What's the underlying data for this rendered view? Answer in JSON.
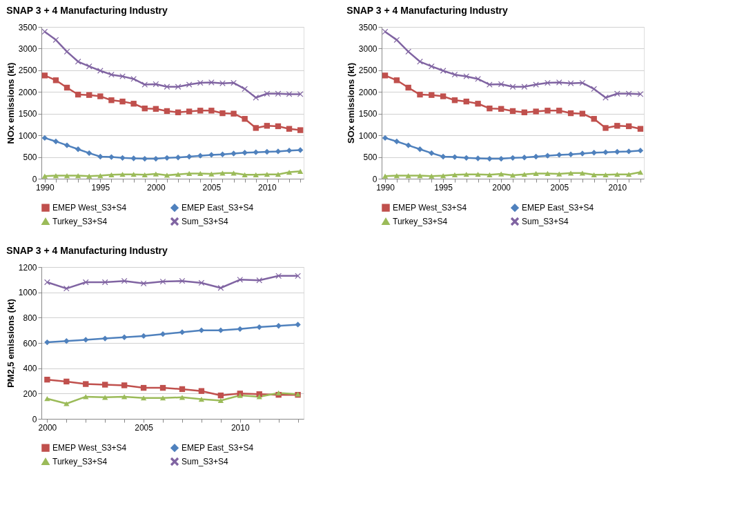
{
  "chart_data": [
    {
      "type": "line",
      "title": "SNAP 3 + 4 Manufacturing Industry",
      "ylabel": "NOx  emissions (kt)",
      "categories": [
        "1990",
        null,
        null,
        null,
        null,
        "1995",
        null,
        null,
        null,
        null,
        "2000",
        null,
        null,
        null,
        null,
        "2005",
        null,
        null,
        null,
        null,
        "2010",
        null,
        null,
        null
      ],
      "series": [
        {
          "name": "EMEP West_S3+S4",
          "color": "#c0504d",
          "marker": "square",
          "values": [
            2380,
            2270,
            2100,
            1940,
            1930,
            1900,
            1810,
            1780,
            1730,
            1620,
            1610,
            1560,
            1530,
            1550,
            1570,
            1570,
            1510,
            1500,
            1380,
            1170,
            1220,
            1210,
            1150,
            1120
          ]
        },
        {
          "name": "EMEP East_S3+S4",
          "color": "#4f81bd",
          "marker": "diamond",
          "values": [
            940,
            860,
            770,
            680,
            590,
            510,
            500,
            480,
            470,
            460,
            460,
            480,
            490,
            510,
            530,
            550,
            560,
            580,
            600,
            610,
            620,
            630,
            650,
            660
          ]
        },
        {
          "name": "Turkey_S3+S4",
          "color": "#9bbb59",
          "marker": "triangle",
          "values": [
            60,
            70,
            70,
            70,
            60,
            70,
            90,
            100,
            100,
            90,
            110,
            80,
            100,
            120,
            120,
            110,
            130,
            130,
            90,
            90,
            100,
            100,
            150,
            170
          ]
        },
        {
          "name": "Sum_S3+S4",
          "color": "#8064a2",
          "marker": "cross",
          "values": [
            3390,
            3200,
            2930,
            2700,
            2590,
            2490,
            2400,
            2360,
            2300,
            2170,
            2180,
            2120,
            2120,
            2170,
            2210,
            2220,
            2200,
            2210,
            2070,
            1870,
            1960,
            1960,
            1950,
            1950
          ]
        }
      ],
      "ylim": [
        0,
        3500
      ],
      "yticks": [
        0,
        500,
        1000,
        1500,
        2000,
        2500,
        3000,
        3500
      ],
      "grid": "y",
      "legend": "bottom"
    },
    {
      "type": "line",
      "title": "SNAP 3 + 4 Manufacturing Industry",
      "ylabel": "SOx  emissions (kt)",
      "categories": [
        "1990",
        null,
        null,
        null,
        null,
        "1995",
        null,
        null,
        null,
        null,
        "2000",
        null,
        null,
        null,
        null,
        "2005",
        null,
        null,
        null,
        null,
        "2010",
        null,
        null
      ],
      "series": [
        {
          "name": "EMEP West_S3+S4",
          "color": "#c0504d",
          "marker": "square",
          "values": [
            2380,
            2270,
            2100,
            1940,
            1930,
            1900,
            1810,
            1780,
            1730,
            1620,
            1610,
            1560,
            1530,
            1550,
            1570,
            1570,
            1510,
            1500,
            1380,
            1170,
            1220,
            1210,
            1150
          ]
        },
        {
          "name": "EMEP East_S3+S4",
          "color": "#4f81bd",
          "marker": "diamond",
          "values": [
            940,
            860,
            770,
            680,
            590,
            510,
            500,
            480,
            470,
            460,
            460,
            480,
            490,
            510,
            530,
            550,
            560,
            580,
            600,
            610,
            620,
            630,
            650
          ]
        },
        {
          "name": "Turkey_S3+S4",
          "color": "#9bbb59",
          "marker": "triangle",
          "values": [
            60,
            70,
            70,
            70,
            60,
            70,
            90,
            100,
            100,
            90,
            110,
            80,
            100,
            120,
            120,
            110,
            130,
            130,
            90,
            90,
            100,
            100,
            150
          ]
        },
        {
          "name": "Sum_S3+S4",
          "color": "#8064a2",
          "marker": "cross",
          "values": [
            3390,
            3200,
            2930,
            2700,
            2590,
            2490,
            2400,
            2360,
            2300,
            2170,
            2180,
            2120,
            2120,
            2170,
            2210,
            2220,
            2200,
            2210,
            2070,
            1870,
            1960,
            1960,
            1950
          ]
        }
      ],
      "ylim": [
        0,
        3500
      ],
      "yticks": [
        0,
        500,
        1000,
        1500,
        2000,
        2500,
        3000,
        3500
      ],
      "grid": "y",
      "legend": "bottom"
    },
    {
      "type": "line",
      "title": "SNAP 3 + 4 Manufacturing Industry",
      "ylabel": "PM2,5  emissions (kt)",
      "categories": [
        "2000",
        null,
        null,
        null,
        null,
        "2005",
        null,
        null,
        null,
        null,
        "2010",
        null,
        null,
        null
      ],
      "series": [
        {
          "name": "EMEP West_S3+S4",
          "color": "#c0504d",
          "marker": "square",
          "values": [
            310,
            295,
            275,
            270,
            265,
            245,
            245,
            235,
            220,
            185,
            200,
            195,
            190,
            190
          ]
        },
        {
          "name": "EMEP East_S3+S4",
          "color": "#4f81bd",
          "marker": "diamond",
          "values": [
            605,
            615,
            625,
            635,
            645,
            655,
            670,
            685,
            700,
            700,
            710,
            725,
            735,
            745
          ]
        },
        {
          "name": "Turkey_S3+S4",
          "color": "#9bbb59",
          "marker": "triangle",
          "values": [
            160,
            120,
            175,
            170,
            175,
            165,
            165,
            170,
            155,
            145,
            185,
            175,
            205,
            195
          ]
        },
        {
          "name": "Sum_S3+S4",
          "color": "#8064a2",
          "marker": "cross",
          "values": [
            1080,
            1030,
            1080,
            1080,
            1090,
            1070,
            1085,
            1090,
            1075,
            1035,
            1100,
            1095,
            1130,
            1130
          ]
        }
      ],
      "ylim": [
        0,
        1200
      ],
      "yticks": [
        0,
        200,
        400,
        600,
        800,
        1000,
        1200
      ],
      "grid": "y",
      "legend": "bottom"
    }
  ]
}
